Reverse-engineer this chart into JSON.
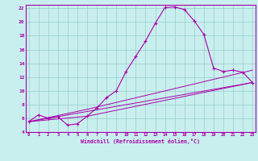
{
  "xlabel": "Windchill (Refroidissement éolien,°C)",
  "bg_color": "#c8efee",
  "line_color": "#aa00aa",
  "grid_color": "#99cccc",
  "curve1_x": [
    0,
    1,
    2,
    3,
    4,
    5,
    6,
    7,
    8,
    9,
    10,
    11,
    12,
    13,
    14,
    15,
    16,
    17,
    18,
    19,
    20,
    21,
    22,
    23
  ],
  "curve1_y": [
    5.5,
    6.5,
    6.0,
    6.2,
    5.0,
    5.2,
    6.3,
    7.5,
    9.0,
    10.0,
    12.8,
    15.0,
    17.2,
    19.8,
    22.1,
    22.2,
    21.8,
    20.2,
    18.2,
    13.3,
    12.8,
    13.0,
    12.7,
    11.2
  ],
  "line2_x": [
    0,
    23
  ],
  "line2_y": [
    5.5,
    11.2
  ],
  "line3_x": [
    0,
    6,
    23
  ],
  "line3_y": [
    5.5,
    6.3,
    11.2
  ],
  "line4_x": [
    0,
    6,
    23
  ],
  "line4_y": [
    5.5,
    7.3,
    13.0
  ],
  "ylim": [
    4,
    22.5
  ],
  "xlim": [
    0,
    23
  ],
  "yticks": [
    4,
    6,
    8,
    10,
    12,
    14,
    16,
    18,
    20,
    22
  ],
  "xticks": [
    0,
    1,
    2,
    3,
    4,
    5,
    6,
    7,
    8,
    9,
    10,
    11,
    12,
    13,
    14,
    15,
    16,
    17,
    18,
    19,
    20,
    21,
    22,
    23
  ]
}
